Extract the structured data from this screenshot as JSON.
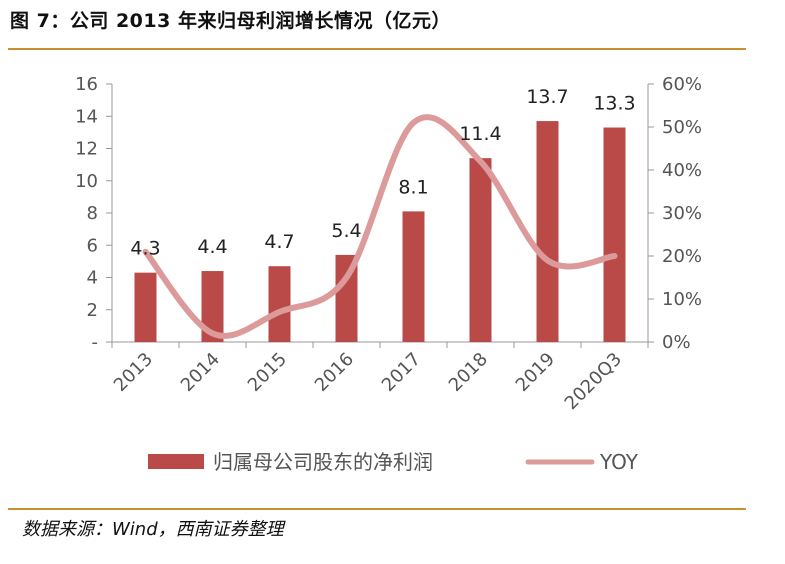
{
  "header": {
    "title": "图 7：公司 2013 年来归母利润增长情况（亿元）"
  },
  "footer": {
    "source": "数据来源：Wind，西南证券整理"
  },
  "colors": {
    "bar": "#b94a48",
    "line": "#dc9a9a",
    "rule": "#c8902e",
    "axis": "#999999"
  },
  "chart_data": {
    "type": "bar",
    "categories": [
      "2013",
      "2014",
      "2015",
      "2016",
      "2017",
      "2018",
      "2019",
      "2020Q3"
    ],
    "series": [
      {
        "name": "归属母公司股东的净利润",
        "type": "bar",
        "axis": "left",
        "values": [
          4.3,
          4.4,
          4.7,
          5.4,
          8.1,
          11.4,
          13.7,
          13.3
        ],
        "labels": [
          "4.3",
          "4.4",
          "4.7",
          "5.4",
          "8.1",
          "11.4",
          "13.7",
          "13.3"
        ]
      },
      {
        "name": "YOY",
        "type": "line",
        "axis": "right",
        "values": [
          21,
          2,
          7,
          15,
          51,
          42,
          19,
          20
        ]
      }
    ],
    "y_left": {
      "ylim": [
        0,
        16
      ],
      "ticks": [
        0,
        2,
        4,
        6,
        8,
        10,
        12,
        14,
        16
      ],
      "tick_labels": [
        "-",
        "2",
        "4",
        "6",
        "8",
        "10",
        "12",
        "14",
        "16"
      ]
    },
    "y_right": {
      "ylim": [
        0,
        60
      ],
      "ticks": [
        0,
        10,
        20,
        30,
        40,
        50,
        60
      ],
      "tick_labels": [
        "0%",
        "10%",
        "20%",
        "30%",
        "40%",
        "50%",
        "60%"
      ]
    },
    "grid": false,
    "legend": {
      "position": "bottom",
      "items": [
        "归属母公司股东的净利润",
        "YOY"
      ]
    }
  }
}
